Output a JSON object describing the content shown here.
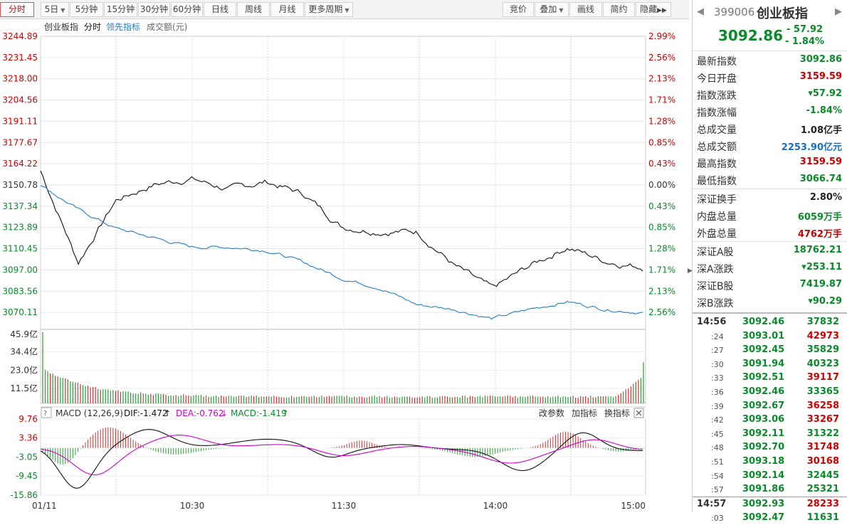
{
  "toolbar": {
    "left_buttons": [
      {
        "label": "分时",
        "active": true
      },
      {
        "label": "5日",
        "dropdown": true
      },
      {
        "label": "5分钟"
      },
      {
        "label": "15分钟"
      },
      {
        "label": "30分钟"
      },
      {
        "label": "60分钟"
      },
      {
        "label": "日线"
      },
      {
        "label": "周线"
      },
      {
        "label": "月线"
      },
      {
        "label": "更多周期",
        "dropdown": true
      }
    ],
    "right_buttons": [
      {
        "label": "竞价"
      },
      {
        "label": "叠加",
        "dropdown": true
      },
      {
        "label": "画线"
      },
      {
        "label": "简约"
      },
      {
        "label": "隐藏",
        "icon": "double-chevron-right-icon"
      }
    ]
  },
  "legend": {
    "name": "创业板指",
    "mode": "分时",
    "leading": "领先指标",
    "turnover": "成交额(元)"
  },
  "price_axis": {
    "left": [
      "3244.89",
      "3231.45",
      "3218.00",
      "3204.56",
      "3191.11",
      "3177.67",
      "3164.22",
      "3150.78",
      "3137.34",
      "3123.89",
      "3110.45",
      "3097.00",
      "3083.56",
      "3070.11"
    ],
    "right": [
      "2.99%",
      "2.56%",
      "2.13%",
      "1.71%",
      "1.28%",
      "0.85%",
      "0.43%",
      "0.00%",
      "0.43%",
      "0.85%",
      "1.28%",
      "1.71%",
      "2.13%",
      "2.56%"
    ]
  },
  "volume_axis": [
    "45.9亿",
    "34.4亿",
    "23.0亿",
    "11.5亿"
  ],
  "macd": {
    "title": "MACD (12,26,9)",
    "dif": "DIF:-1.472",
    "dea": "DEA:-0.762",
    "macd": "MACD:-1.419",
    "arrow_up": "↑",
    "arrow_down": "↓",
    "actions": [
      "改参数",
      "加指标",
      "换指标"
    ],
    "axis": [
      "9.76",
      "3.36",
      "-3.05",
      "-9.45",
      "-15.86"
    ]
  },
  "time_axis": [
    "01/11",
    "10:30",
    "11:30",
    "14:00",
    "15:00"
  ],
  "chart_data": {
    "type": "line",
    "x": [
      "09:30",
      "09:45",
      "10:00",
      "10:15",
      "10:30",
      "10:45",
      "11:00",
      "11:15",
      "11:30",
      "13:15",
      "13:30",
      "13:45",
      "14:00",
      "14:15",
      "14:30",
      "14:45",
      "15:00"
    ],
    "series": [
      {
        "name": "创业板指",
        "values": [
          3159,
          3100,
          3140,
          3150,
          3154,
          3147,
          3152,
          3144,
          3123,
          3120,
          3120,
          3098,
          3083,
          3098,
          3110,
          3101,
          3097
        ]
      },
      {
        "name": "领先指标",
        "values": [
          3150,
          3134,
          3122,
          3116,
          3110,
          3110,
          3108,
          3100,
          3090,
          3084,
          3073,
          3070,
          3064,
          3070,
          3075,
          3070,
          3068
        ]
      }
    ],
    "ylim": [
      3056.67,
      3244.89
    ],
    "prev_close": 3150.78,
    "volume_ylim": [
      0,
      45.9
    ],
    "macd_ylim": [
      -15.86,
      9.76
    ]
  },
  "quote": {
    "code": "399006",
    "name": "创业板指",
    "price": "3092.86",
    "change": "- 57.92",
    "percent": "- 1.84%",
    "prev_arrow": "◀",
    "next_arrow": "▶"
  },
  "stats": [
    {
      "label": "最新指数",
      "value": "3092.86",
      "color": "green"
    },
    {
      "label": "今日开盘",
      "value": "3159.59",
      "color": "red"
    },
    {
      "label": "指数涨跌",
      "value": "▾57.92",
      "color": "green"
    },
    {
      "label": "指数涨幅",
      "value": "-1.84%",
      "color": "green"
    },
    {
      "label": "总成交量",
      "value": "1.08亿手",
      "color": "black"
    },
    {
      "label": "总成交额",
      "value": "2253.90亿元",
      "color": "blue"
    },
    {
      "label": "最高指数",
      "value": "3159.59",
      "color": "red"
    },
    {
      "label": "最低指数",
      "value": "3066.74",
      "color": "green"
    },
    {
      "label": "深证换手",
      "value": "2.80%",
      "color": "black"
    },
    {
      "label": "内盘总量",
      "value": "6059万手",
      "color": "green"
    },
    {
      "label": "外盘总量",
      "value": "4762万手",
      "color": "red"
    },
    {
      "label": "深证A股",
      "value": "18762.21",
      "color": "green"
    },
    {
      "label": "深A涨跌",
      "value": "▾253.11",
      "color": "green"
    },
    {
      "label": "深证B股",
      "value": "7419.87",
      "color": "green"
    },
    {
      "label": "深B涨跌",
      "value": "▾90.29",
      "color": "green"
    }
  ],
  "ticks": [
    {
      "time": "14:56",
      "price": "3092.46",
      "vol": "37832",
      "color": "green",
      "major": true
    },
    {
      "time": ":24",
      "price": "3093.01",
      "vol": "42973",
      "color": "red"
    },
    {
      "time": ":27",
      "price": "3092.45",
      "vol": "35829",
      "color": "green"
    },
    {
      "time": ":30",
      "price": "3091.94",
      "vol": "40323",
      "color": "green"
    },
    {
      "time": ":33",
      "price": "3092.51",
      "vol": "39117",
      "color": "red"
    },
    {
      "time": ":36",
      "price": "3092.46",
      "vol": "33365",
      "color": "green"
    },
    {
      "time": ":39",
      "price": "3092.67",
      "vol": "36258",
      "color": "red"
    },
    {
      "time": ":42",
      "price": "3093.06",
      "vol": "33267",
      "color": "red"
    },
    {
      "time": ":45",
      "price": "3092.11",
      "vol": "31322",
      "color": "green"
    },
    {
      "time": ":48",
      "price": "3092.70",
      "vol": "31748",
      "color": "red"
    },
    {
      "time": ":51",
      "price": "3093.18",
      "vol": "30168",
      "color": "red"
    },
    {
      "time": ":54",
      "price": "3092.14",
      "vol": "32445",
      "color": "green"
    },
    {
      "time": ":57",
      "price": "3091.86",
      "vol": "25321",
      "color": "green"
    },
    {
      "time": "14:57",
      "price": "3092.93",
      "vol": "28233",
      "color": "red",
      "major": true
    },
    {
      "time": ":03",
      "price": "3092.47",
      "vol": "11631",
      "color": "green"
    }
  ],
  "colors": {
    "up": "#d00000",
    "down": "#0a8a2a",
    "index_line": "#111111",
    "leading_line": "#1f7fc8",
    "dea_line": "#d000d0",
    "grid": "#e4e4e4"
  }
}
